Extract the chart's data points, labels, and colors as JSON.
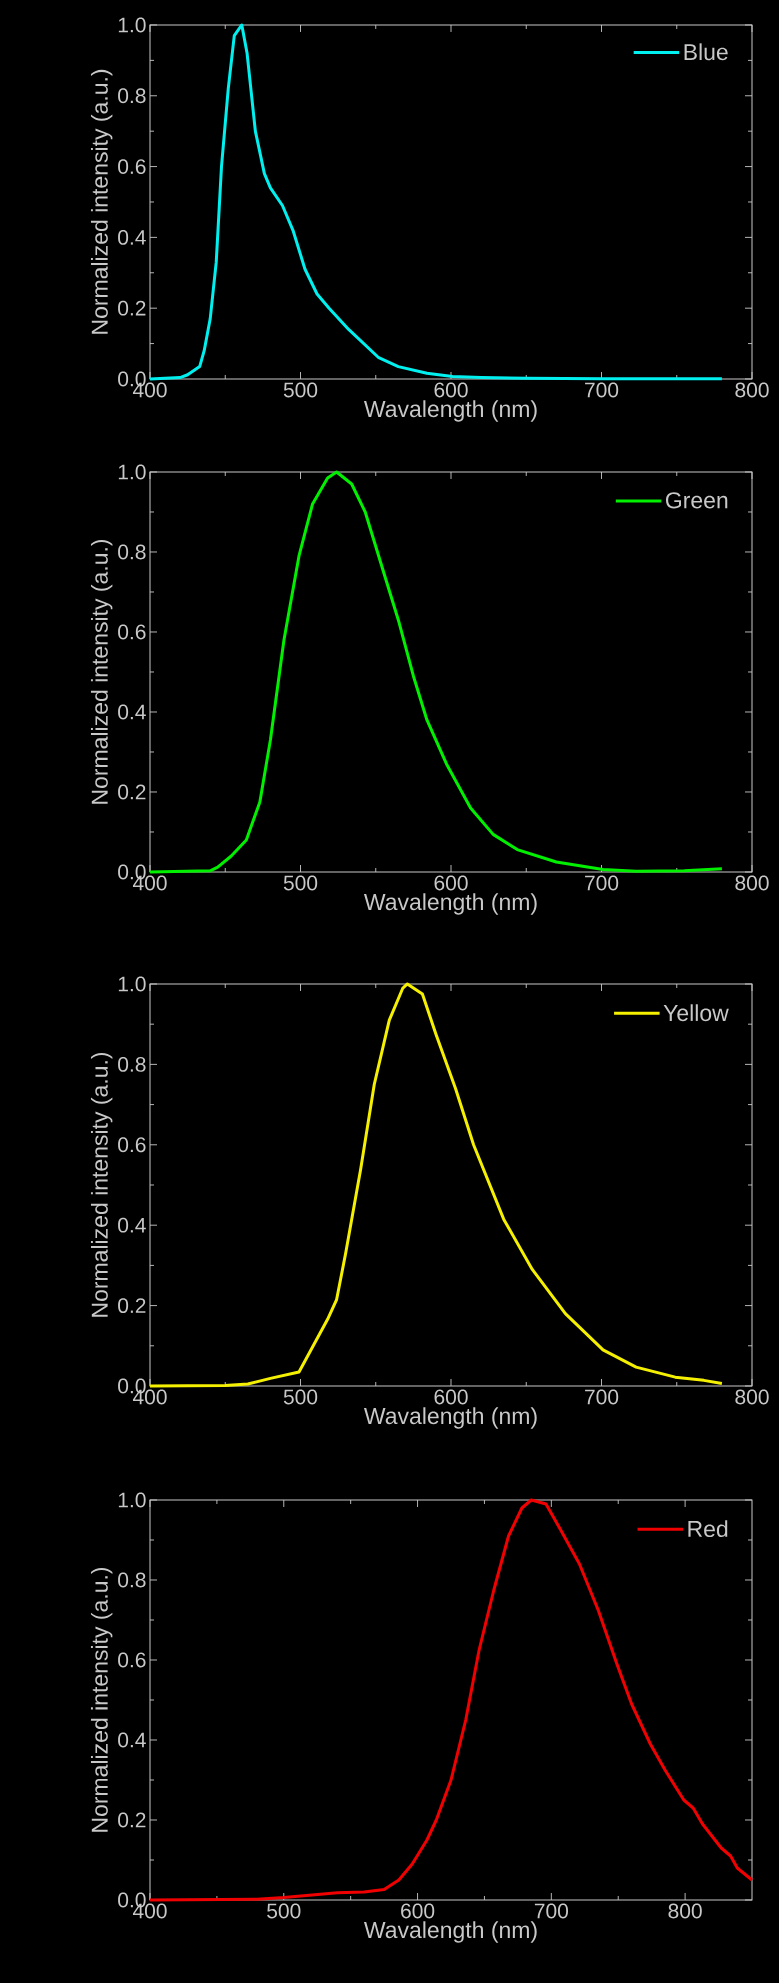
{
  "chart_data": [
    {
      "type": "line",
      "xlabel": "Wavalength (nm)",
      "ylabel": "Normalized intensity (a.u.)",
      "xlim": [
        400,
        800
      ],
      "ylim": [
        0,
        1.0
      ],
      "xticks": [
        400,
        500,
        600,
        700,
        800
      ],
      "yticks": [
        {
          "value": 0,
          "label": "0.0"
        },
        {
          "value": 0.2,
          "label": "0.2"
        },
        {
          "value": 0.4,
          "label": "0.4"
        },
        {
          "value": 0.6,
          "label": "0.6"
        },
        {
          "value": 0.8,
          "label": "0.8"
        },
        {
          "value": 1.0,
          "label": "1.0"
        }
      ],
      "legend": "top right",
      "grid": false,
      "marker": "none",
      "line_style": "solid",
      "series": [
        {
          "name": "Blue",
          "color": "#00f0f0",
          "x": [
            400,
            420,
            425,
            433,
            436,
            440,
            444,
            447.5,
            452,
            456,
            461,
            464.5,
            470,
            476,
            480,
            488,
            495,
            503,
            511,
            519,
            532,
            552,
            565,
            584,
            601,
            620,
            650,
            700,
            780
          ],
          "values": [
            0,
            0.004,
            0.012,
            0.035,
            0.08,
            0.17,
            0.33,
            0.6,
            0.82,
            0.97,
            1.0,
            0.92,
            0.7,
            0.58,
            0.54,
            0.49,
            0.42,
            0.31,
            0.24,
            0.2,
            0.14,
            0.06,
            0.035,
            0.016,
            0.007,
            0.004,
            0.002,
            0.001,
            0.001
          ]
        }
      ]
    },
    {
      "type": "line",
      "xlabel": "Wavalength (nm)",
      "ylabel": "Normalized intensity (a.u.)",
      "xlim": [
        400,
        800
      ],
      "ylim": [
        0,
        1.0
      ],
      "xticks": [
        400,
        500,
        600,
        700,
        800
      ],
      "yticks": [
        {
          "value": 0,
          "label": "0.0"
        },
        {
          "value": 0.2,
          "label": "0.2"
        },
        {
          "value": 0.4,
          "label": "0.4"
        },
        {
          "value": 0.6,
          "label": "0.6"
        },
        {
          "value": 0.8,
          "label": "0.8"
        },
        {
          "value": 1.0,
          "label": "1.0"
        }
      ],
      "legend": "top right",
      "grid": false,
      "marker": "none",
      "line_style": "solid",
      "series": [
        {
          "name": "Green",
          "color": "#00f000",
          "x": [
            400,
            440,
            445,
            454,
            464,
            473,
            480,
            489,
            499,
            508,
            518,
            524,
            534,
            543,
            556,
            565,
            575,
            584,
            597,
            613,
            628,
            644,
            670,
            701,
            723,
            755,
            780
          ],
          "values": [
            0,
            0.003,
            0.012,
            0.04,
            0.08,
            0.175,
            0.33,
            0.58,
            0.79,
            0.92,
            0.985,
            1.0,
            0.97,
            0.9,
            0.74,
            0.63,
            0.49,
            0.38,
            0.27,
            0.16,
            0.094,
            0.056,
            0.025,
            0.006,
            0.002,
            0.003,
            0.008
          ]
        }
      ]
    },
    {
      "type": "line",
      "xlabel": "Wavalength (nm)",
      "ylabel": "Normalized intensity (a.u.)",
      "xlim": [
        400,
        800
      ],
      "ylim": [
        0,
        1.0
      ],
      "xticks": [
        400,
        500,
        600,
        700,
        800
      ],
      "yticks": [
        {
          "value": 0,
          "label": "0.0"
        },
        {
          "value": 0.2,
          "label": "0.2"
        },
        {
          "value": 0.4,
          "label": "0.4"
        },
        {
          "value": 0.6,
          "label": "0.6"
        },
        {
          "value": 0.8,
          "label": "0.8"
        },
        {
          "value": 1.0,
          "label": "1.0"
        }
      ],
      "legend": "top right",
      "grid": false,
      "marker": "none",
      "line_style": "solid",
      "series": [
        {
          "name": "Yellow",
          "color": "#f5f000",
          "x": [
            400,
            450,
            465,
            480,
            499,
            508,
            518,
            524,
            530,
            540,
            549,
            559,
            568,
            571,
            581,
            590,
            603,
            615,
            635,
            654,
            676,
            701,
            723,
            749,
            768,
            780
          ],
          "values": [
            0,
            0.001,
            0.005,
            0.019,
            0.035,
            0.097,
            0.166,
            0.215,
            0.33,
            0.54,
            0.75,
            0.91,
            0.99,
            1.0,
            0.975,
            0.875,
            0.74,
            0.6,
            0.415,
            0.29,
            0.18,
            0.09,
            0.047,
            0.022,
            0.014,
            0.006
          ]
        }
      ]
    },
    {
      "type": "line",
      "xlabel": "Wavalength (nm)",
      "ylabel": "Normalized intensity (a.u.)",
      "xlim": [
        400,
        850
      ],
      "ylim": [
        0,
        1.0
      ],
      "xticks": [
        400,
        500,
        600,
        700,
        800
      ],
      "yticks": [
        {
          "value": 0,
          "label": "0.0"
        },
        {
          "value": 0.2,
          "label": "0.2"
        },
        {
          "value": 0.4,
          "label": "0.4"
        },
        {
          "value": 0.6,
          "label": "0.6"
        },
        {
          "value": 0.8,
          "label": "0.8"
        },
        {
          "value": 1.0,
          "label": "1.0"
        }
      ],
      "legend": "top right",
      "grid": false,
      "marker": "none",
      "line_style": "solid",
      "series": [
        {
          "name": "Red",
          "color": "#f00000",
          "x": [
            400,
            480,
            500,
            520,
            540,
            560,
            575,
            586,
            596,
            607,
            614,
            625,
            636,
            646,
            657,
            668,
            678,
            685,
            696,
            707,
            721,
            735,
            749,
            760,
            774,
            785,
            799,
            806,
            813,
            827,
            834,
            839,
            850
          ],
          "values": [
            0,
            0.002,
            0.006,
            0.012,
            0.018,
            0.02,
            0.026,
            0.05,
            0.09,
            0.15,
            0.2,
            0.3,
            0.45,
            0.625,
            0.775,
            0.91,
            0.98,
            1.0,
            0.99,
            0.925,
            0.84,
            0.725,
            0.59,
            0.49,
            0.39,
            0.325,
            0.25,
            0.23,
            0.19,
            0.13,
            0.11,
            0.08,
            0.05
          ]
        }
      ]
    }
  ]
}
